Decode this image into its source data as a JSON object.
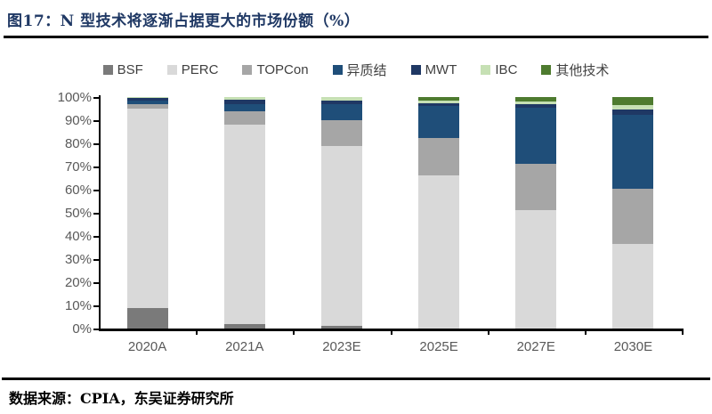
{
  "figure": {
    "title": "图17：N 型技术将逐渐占据更大的市场份额（%）",
    "title_color": "#1f3864",
    "source": "数据来源：CPIA，东吴证券研究所"
  },
  "chart_data": {
    "type": "bar",
    "stacked": true,
    "title": "N 型技术将逐渐占据更大的市场份额（%）",
    "xlabel": "",
    "ylabel": "",
    "ylim": [
      0,
      100
    ],
    "grid": false,
    "legend_position": "top",
    "y_ticks": [
      "100%",
      "90%",
      "80%",
      "70%",
      "60%",
      "50%",
      "40%",
      "30%",
      "20%",
      "10%",
      "0%"
    ],
    "categories": [
      "2020A",
      "2021A",
      "2023E",
      "2025E",
      "2027E",
      "2030E"
    ],
    "series": [
      {
        "name": "BSF",
        "color": "#7a7a7a",
        "values": [
          8.8,
          2.0,
          1.0,
          0.0,
          0.0,
          0.0
        ]
      },
      {
        "name": "PERC",
        "color": "#d9d9d9",
        "values": [
          86.4,
          86.0,
          78.0,
          66.0,
          51.0,
          36.5
        ]
      },
      {
        "name": "TOPCon",
        "color": "#a6a6a6",
        "values": [
          1.8,
          6.0,
          11.0,
          16.5,
          20.0,
          24.0
        ]
      },
      {
        "name": "异质结",
        "color": "#1f4e79",
        "values": [
          1.5,
          3.0,
          7.0,
          13.5,
          24.5,
          32.0
        ]
      },
      {
        "name": "MWT",
        "color": "#1f3864",
        "values": [
          1.0,
          2.0,
          1.5,
          1.5,
          1.5,
          2.0
        ]
      },
      {
        "name": "IBC",
        "color": "#c6e0b4",
        "values": [
          0.5,
          1.0,
          1.5,
          1.0,
          1.0,
          2.0
        ]
      },
      {
        "name": "其他技术",
        "color": "#4e7b2f",
        "values": [
          0.0,
          0.0,
          0.0,
          1.5,
          2.0,
          3.5
        ]
      }
    ],
    "colors": {
      "axis": "#000000",
      "tick_label": "#595959",
      "legend_label": "#404040"
    }
  }
}
